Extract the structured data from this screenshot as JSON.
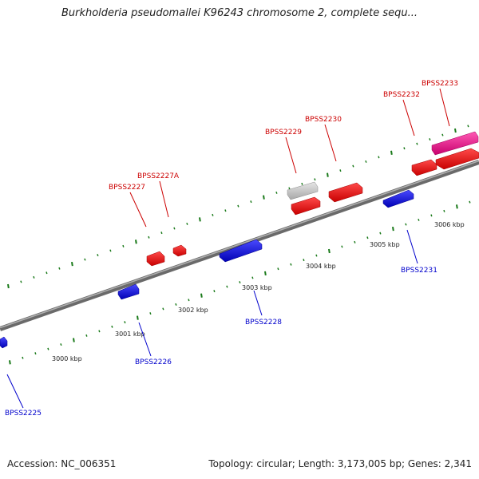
{
  "header": {
    "title": "Burkholderia pseudomallei K96243 chromosome 2, complete sequ..."
  },
  "footer": {
    "accession": "Accession: NC_006351",
    "summary": "Topology: circular; Length: 3,173,005 bp; Genes: 2,341"
  },
  "colors": {
    "forward_gene": "#e60000",
    "reverse_gene": "#1a1ae6",
    "pseudo_gene": "#c8c8c8",
    "rna_gene": "#e6007e",
    "backbone": "#888888",
    "tick": "#1a7a1a",
    "forward_label": "#cc0000",
    "reverse_label": "#0000cc"
  },
  "scale_labels": [
    "3000 kbp",
    "3001 kbp",
    "3002 kbp",
    "3003 kbp",
    "3004 kbp",
    "3005 kbp",
    "3006 kbp"
  ],
  "genes_forward": [
    {
      "id": "g-2227",
      "label": "BPSS2227",
      "type": "cds"
    },
    {
      "id": "g-2227a",
      "label": "BPSS2227A",
      "type": "cds"
    },
    {
      "id": "g-2229",
      "label": "BPSS2229",
      "type": "pseudo"
    },
    {
      "id": "g-2229b",
      "label": "",
      "type": "cds"
    },
    {
      "id": "g-2230",
      "label": "BPSS2230",
      "type": "cds"
    },
    {
      "id": "g-2232",
      "label": "BPSS2232",
      "type": "cds"
    },
    {
      "id": "g-2233",
      "label": "BPSS2233",
      "type": "rna"
    },
    {
      "id": "g-2233b",
      "label": "",
      "type": "cds"
    }
  ],
  "genes_reverse": [
    {
      "id": "g-2225",
      "label": "BPSS2225"
    },
    {
      "id": "g-2226",
      "label": "BPSS2226"
    },
    {
      "id": "g-2228",
      "label": "BPSS2228"
    },
    {
      "id": "g-2231",
      "label": "BPSS2231"
    }
  ]
}
